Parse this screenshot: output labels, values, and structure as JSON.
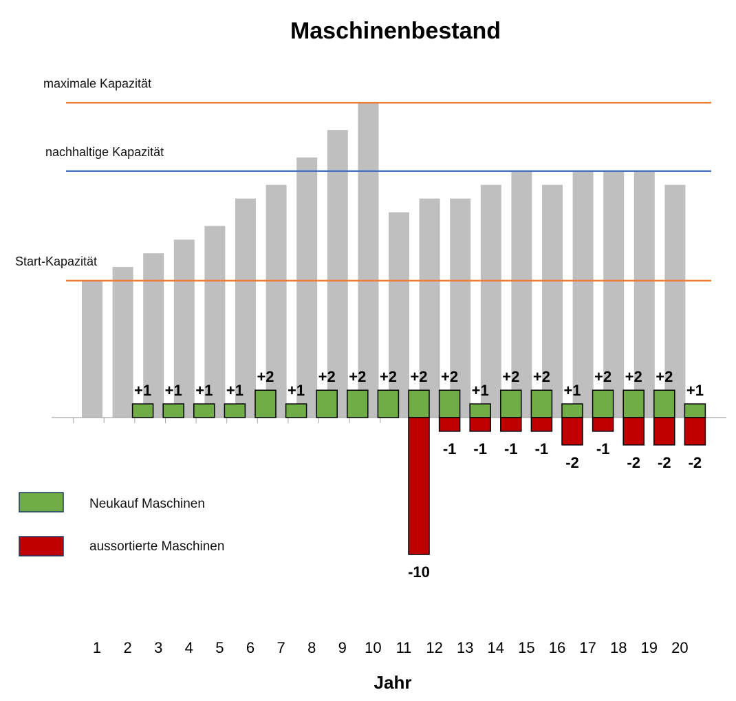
{
  "chart_data": {
    "type": "bar",
    "title": "Maschinenbestand",
    "xlabel": "Jahr",
    "ylabel": "",
    "categories": [
      "1",
      "2",
      "3",
      "4",
      "5",
      "6",
      "7",
      "8",
      "9",
      "10",
      "11",
      "12",
      "13",
      "14",
      "15",
      "16",
      "17",
      "18",
      "19",
      "20"
    ],
    "series": [
      {
        "key": "bestand",
        "values": [
          10,
          11,
          12,
          13,
          14,
          16,
          17,
          19,
          21,
          23,
          15,
          16,
          16,
          17,
          18,
          17,
          18,
          18,
          18,
          17
        ],
        "color": "#bfbfbf"
      },
      {
        "key": "neukauf",
        "name": "Neukauf Maschinen",
        "values": [
          0,
          1,
          1,
          1,
          1,
          2,
          1,
          2,
          2,
          2,
          2,
          2,
          1,
          2,
          2,
          1,
          2,
          2,
          2,
          1
        ],
        "color": "#70ad47"
      },
      {
        "key": "aussortiert",
        "name": "aussortierte Maschinen",
        "values": [
          0,
          0,
          0,
          0,
          0,
          0,
          0,
          0,
          0,
          0,
          -10,
          -1,
          -1,
          -1,
          -1,
          -2,
          -1,
          -2,
          -2,
          -2
        ],
        "color": "#c00000"
      }
    ],
    "data_labels": {
      "neukauf": [
        "",
        "+1",
        "+1",
        "+1",
        "+1",
        "+2",
        "+1",
        "+2",
        "+2",
        "+2",
        "+2",
        "+2",
        "+1",
        "+2",
        "+2",
        "+1",
        "+2",
        "+2",
        "+2",
        "+1"
      ],
      "aussortiert": [
        "",
        "",
        "",
        "",
        "",
        "",
        "",
        "",
        "",
        "",
        "-10",
        "-1",
        "-1",
        "-1",
        "-1",
        "-2",
        "-1",
        "-2",
        "-2",
        "-2"
      ]
    },
    "reference_lines": [
      {
        "key": "max",
        "label": "maximale Kapazität",
        "value": 23,
        "color": "#ed7d31"
      },
      {
        "key": "sustain",
        "label": "nachhaltige Kapazität",
        "value": 18,
        "color": "#4472c4"
      },
      {
        "key": "start",
        "label": "Start-Kapazität",
        "value": 10,
        "color": "#ed7d31"
      }
    ],
    "ylim": [
      -10,
      23
    ],
    "grid": false,
    "legend": "bottom-left"
  }
}
